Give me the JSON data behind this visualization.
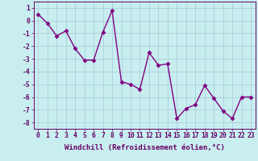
{
  "x": [
    0,
    1,
    2,
    3,
    4,
    5,
    6,
    7,
    8,
    9,
    10,
    11,
    12,
    13,
    14,
    15,
    16,
    17,
    18,
    19,
    20,
    21,
    22,
    23
  ],
  "y": [
    0.5,
    -0.2,
    -1.2,
    -0.8,
    -2.2,
    -3.1,
    -3.1,
    -0.9,
    0.8,
    -4.8,
    -5.0,
    -5.4,
    -2.5,
    -3.5,
    -3.4,
    -7.7,
    -6.9,
    -6.6,
    -5.1,
    -6.1,
    -7.1,
    -7.7,
    -6.0,
    -6.0
  ],
  "line_color": "#800080",
  "marker_color": "#800080",
  "bg_color": "#c8eef0",
  "grid_color": "#a8c8d8",
  "xlabel": "Windchill (Refroidissement éolien,°C)",
  "xlim": [
    -0.5,
    23.5
  ],
  "ylim": [
    -8.5,
    1.5
  ],
  "yticks": [
    1,
    0,
    -1,
    -2,
    -3,
    -4,
    -5,
    -6,
    -7,
    -8
  ],
  "xlabel_fontsize": 6.5,
  "tick_fontsize": 5.8,
  "line_width": 1.0,
  "marker_size": 2.5
}
